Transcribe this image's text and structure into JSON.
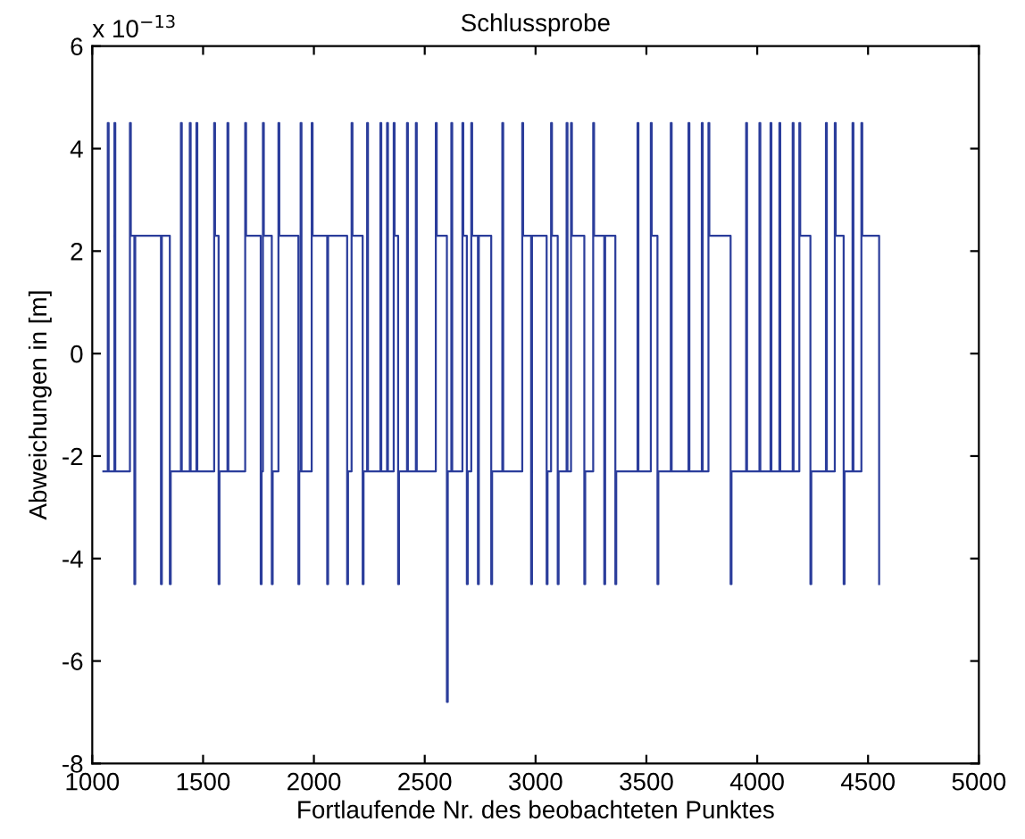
{
  "chart_data": {
    "type": "step",
    "title": "Schlussprobe",
    "xlabel": "Fortlaufende Nr. des beobachteten Punktes",
    "ylabel": "Abweichungen in [m]",
    "annotations": [
      "x 10$^{−13}$"
    ],
    "series": [
      {
        "color": "#2b3d9b",
        "x": [
          1050,
          1070,
          1074,
          1100,
          1104,
          1170,
          1174,
          1190,
          1194,
          1310,
          1314,
          1350,
          1354,
          1400,
          1404,
          1440,
          1444,
          1470,
          1474,
          1550,
          1554,
          1570,
          1574,
          1610,
          1614,
          1690,
          1694,
          1760,
          1764,
          1770,
          1774,
          1810,
          1814,
          1840,
          1844,
          1930,
          1934,
          1940,
          1944,
          1990,
          1994,
          2060,
          2064,
          2150,
          2154,
          2170,
          2174,
          2220,
          2224,
          2240,
          2244,
          2300,
          2304,
          2330,
          2334,
          2360,
          2364,
          2380,
          2384,
          2420,
          2424,
          2460,
          2464,
          2550,
          2554,
          2600,
          2604,
          2620,
          2624,
          2670,
          2674,
          2690,
          2694,
          2710,
          2714,
          2740,
          2744,
          2800,
          2804,
          2850,
          2854,
          2940,
          2944,
          2980,
          2984,
          3050,
          3054,
          3070,
          3074,
          3100,
          3104,
          3140,
          3144,
          3160,
          3164,
          3220,
          3224,
          3260,
          3264,
          3310,
          3314,
          3360,
          3364,
          3460,
          3464,
          3520,
          3524,
          3550,
          3554,
          3610,
          3614,
          3690,
          3694,
          3750,
          3754,
          3780,
          3784,
          3880,
          3884,
          3950,
          3954,
          4010,
          4014,
          4060,
          4064,
          4100,
          4104,
          4160,
          4164,
          4190,
          4194,
          4240,
          4244,
          4310,
          4314,
          4350,
          4354,
          4390,
          4394,
          4430,
          4434,
          4470,
          4474,
          4550
        ],
        "values": [
          -2.3,
          4.5,
          -2.3,
          4.5,
          -2.3,
          4.5,
          2.3,
          -4.5,
          2.3,
          -4.5,
          2.3,
          -4.5,
          -2.3,
          4.5,
          -2.3,
          4.5,
          -2.3,
          4.5,
          -2.3,
          4.5,
          2.3,
          -4.5,
          -2.3,
          4.5,
          -2.3,
          4.5,
          2.3,
          -4.5,
          -2.3,
          4.5,
          2.3,
          -4.5,
          -2.3,
          4.5,
          2.3,
          -4.5,
          -2.3,
          4.5,
          -2.3,
          4.5,
          2.3,
          -4.5,
          2.3,
          -4.5,
          -2.3,
          4.5,
          2.3,
          -4.5,
          -2.3,
          4.5,
          -2.3,
          4.5,
          -2.3,
          4.5,
          -2.3,
          4.5,
          2.3,
          -4.5,
          -2.3,
          4.5,
          -2.3,
          4.5,
          -2.3,
          4.5,
          2.3,
          -6.8,
          -2.3,
          4.5,
          -2.3,
          4.5,
          2.3,
          -4.5,
          -2.3,
          4.5,
          2.3,
          -4.5,
          2.3,
          -4.5,
          -2.3,
          4.5,
          -2.3,
          4.5,
          2.3,
          -4.5,
          2.3,
          -4.5,
          -2.3,
          4.5,
          2.3,
          -4.5,
          -2.3,
          4.5,
          -2.3,
          4.5,
          2.3,
          -4.5,
          -2.3,
          4.5,
          2.3,
          -4.5,
          2.3,
          -4.5,
          -2.3,
          4.5,
          -2.3,
          4.5,
          2.3,
          -4.5,
          -2.3,
          4.5,
          -2.3,
          4.5,
          -2.3,
          4.5,
          -2.3,
          4.5,
          2.3,
          -4.5,
          -2.3,
          4.5,
          -2.3,
          4.5,
          -2.3,
          4.5,
          -2.3,
          4.5,
          -2.3,
          4.5,
          -2.3,
          4.5,
          2.3,
          -4.5,
          -2.3,
          4.5,
          -2.3,
          4.5,
          2.3,
          -4.5,
          -2.3,
          4.5,
          -2.3,
          4.5,
          2.3,
          -4.5
        ]
      }
    ],
    "xlim": [
      1000,
      5000
    ],
    "xticks": [
      1000,
      1500,
      2000,
      2500,
      3000,
      3500,
      4000,
      4500,
      5000
    ],
    "ylim": [
      -8,
      6
    ],
    "yticks": [
      -8,
      -6,
      -4,
      -2,
      0,
      2,
      4,
      6
    ],
    "grid": false,
    "legend": false
  }
}
